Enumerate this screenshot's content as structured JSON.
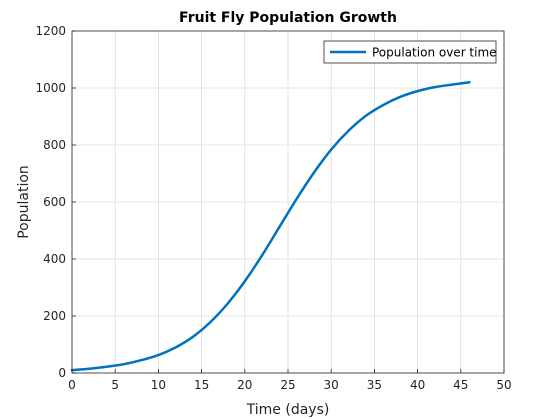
{
  "chart_data": {
    "type": "line",
    "title": "Fruit Fly Population Growth",
    "xlabel": "Time (days)",
    "ylabel": "Population",
    "xlim": [
      0,
      50
    ],
    "ylim": [
      0,
      1200
    ],
    "xticks": [
      0,
      5,
      10,
      15,
      20,
      25,
      30,
      35,
      40,
      45,
      50
    ],
    "yticks": [
      0,
      200,
      400,
      600,
      800,
      1000,
      1200
    ],
    "grid": true,
    "legend_position": "top-right",
    "series": [
      {
        "name": "Population over time",
        "color": "#0072BD",
        "x": [
          0,
          2,
          4,
          6,
          8,
          10,
          12,
          14,
          16,
          18,
          20,
          22,
          24,
          26,
          28,
          30,
          32,
          34,
          36,
          38,
          40,
          42,
          44,
          46
        ],
        "values": [
          10,
          15,
          22,
          31,
          45,
          63,
          90,
          127,
          178,
          243,
          322,
          413,
          512,
          611,
          703,
          784,
          850,
          902,
          940,
          969,
          989,
          1003,
          1012,
          1020
        ]
      }
    ]
  }
}
